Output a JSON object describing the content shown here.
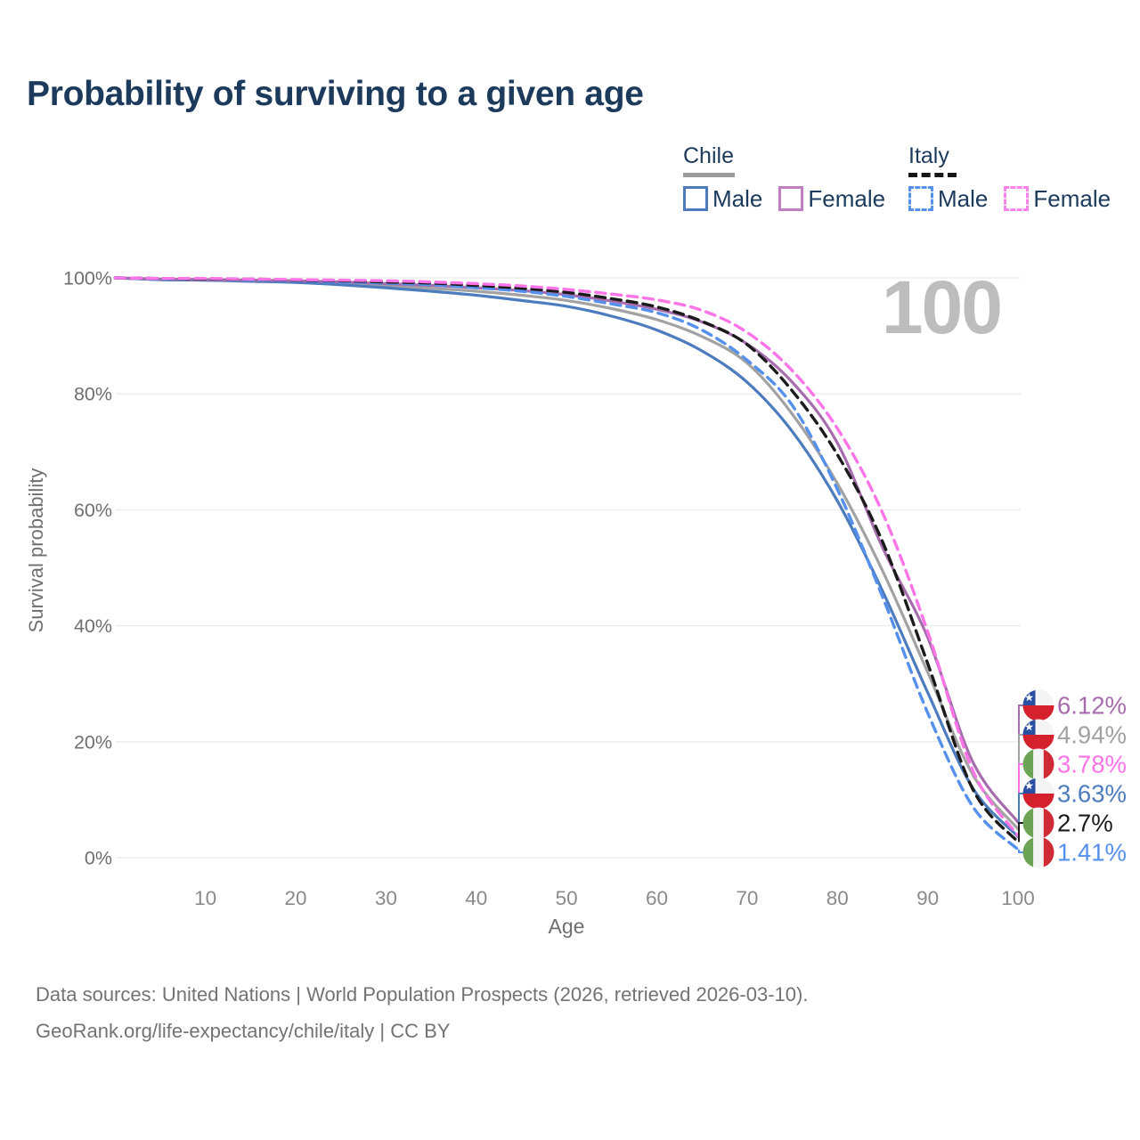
{
  "title": "Probability of surviving to a given age",
  "watermark": "100",
  "legend": {
    "groups": [
      {
        "country": "Chile",
        "line_style": "solid",
        "underline_color": "#9b9b9b",
        "items": [
          {
            "label": "Male",
            "color": "#4c7cbe"
          },
          {
            "label": "Female",
            "color": "#c07fc0"
          }
        ]
      },
      {
        "country": "Italy",
        "line_style": "dashed",
        "underline_color": "#161616",
        "items": [
          {
            "label": "Male",
            "color": "#5590ec"
          },
          {
            "label": "Female",
            "color": "#ff82ea"
          }
        ]
      }
    ]
  },
  "chart_data": {
    "type": "line",
    "title": "Probability of surviving to a given age",
    "xlabel": "Age",
    "ylabel": "Survival probability",
    "xlim": [
      0,
      100
    ],
    "ylim": [
      0,
      100
    ],
    "grid": true,
    "legend_position": "top-right",
    "x_ticks": [
      10,
      20,
      30,
      40,
      50,
      60,
      70,
      80,
      90,
      100
    ],
    "y_ticks": [
      0,
      20,
      40,
      60,
      80,
      100
    ],
    "y_tick_suffix": "%",
    "x": [
      0,
      5,
      10,
      15,
      20,
      25,
      30,
      35,
      40,
      45,
      50,
      55,
      60,
      65,
      70,
      75,
      80,
      85,
      90,
      95,
      100
    ],
    "series": [
      {
        "key": "chile_male",
        "name": "Chile Male",
        "country": "chile",
        "sex": "male",
        "color": "#4c7cbe",
        "dash": false,
        "values": [
          100,
          99.7,
          99.6,
          99.4,
          99.2,
          98.8,
          98.3,
          97.7,
          97.0,
          96.1,
          95.1,
          93.4,
          91.0,
          87.4,
          82.0,
          73.5,
          61.5,
          46.0,
          28.5,
          12.0,
          3.63
        ],
        "end_label": "3.63%"
      },
      {
        "key": "chile_female",
        "name": "Chile Female",
        "country": "chile",
        "sex": "female",
        "color": "#a76cae",
        "dash": false,
        "values": [
          100,
          99.8,
          99.7,
          99.6,
          99.5,
          99.3,
          99.0,
          98.7,
          98.3,
          97.8,
          97.1,
          96.0,
          94.6,
          92.4,
          88.6,
          82.0,
          71.5,
          53.5,
          38.0,
          16.5,
          6.12
        ],
        "end_label": "6.12%"
      },
      {
        "key": "chile_overall",
        "name": "Chile",
        "country": "chile",
        "sex": "both",
        "color": "#a2a2a2",
        "dash": false,
        "values": [
          100,
          99.7,
          99.6,
          99.5,
          99.3,
          99.1,
          98.7,
          98.2,
          97.7,
          97.0,
          96.1,
          94.7,
          92.8,
          89.9,
          85.3,
          76.5,
          64.5,
          49.5,
          32.0,
          14.3,
          4.94
        ],
        "end_label": "4.94%"
      },
      {
        "key": "italy_male",
        "name": "Italy Male",
        "country": "italy",
        "sex": "male",
        "color": "#5590ec",
        "dash": true,
        "values": [
          100,
          99.8,
          99.8,
          99.7,
          99.5,
          99.3,
          99.1,
          98.8,
          98.3,
          97.7,
          96.8,
          95.5,
          94.0,
          91.0,
          85.8,
          78.0,
          63.5,
          45.0,
          25.0,
          8.8,
          1.41
        ],
        "end_label": "1.41%"
      },
      {
        "key": "italy_female",
        "name": "Italy Female",
        "country": "italy",
        "sex": "female",
        "color": "#fc74e8",
        "dash": true,
        "values": [
          100,
          99.9,
          99.9,
          99.8,
          99.7,
          99.6,
          99.5,
          99.3,
          99.0,
          98.6,
          98.0,
          97.2,
          96.2,
          94.4,
          90.6,
          84.0,
          74.0,
          59.5,
          39.0,
          15.0,
          3.78
        ],
        "end_label": "3.78%"
      },
      {
        "key": "italy_overall",
        "name": "Italy",
        "country": "italy",
        "sex": "both",
        "color": "#1b1b1b",
        "dash": true,
        "values": [
          100,
          99.9,
          99.8,
          99.8,
          99.6,
          99.5,
          99.3,
          99.1,
          98.7,
          98.2,
          97.5,
          96.4,
          95.0,
          92.5,
          88.5,
          80.5,
          69.5,
          54.5,
          33.5,
          11.8,
          2.7
        ],
        "end_label": "2.7%"
      }
    ],
    "end_labels": [
      {
        "series": "chile_female",
        "label": "6.12%",
        "flag": "chile"
      },
      {
        "series": "chile_overall",
        "label": "4.94%",
        "flag": "chile"
      },
      {
        "series": "italy_female",
        "label": "3.78%",
        "flag": "italy"
      },
      {
        "series": "chile_male",
        "label": "3.63%",
        "flag": "chile"
      },
      {
        "series": "italy_overall",
        "label": "2.7%",
        "flag": "italy"
      },
      {
        "series": "italy_male",
        "label": "1.41%",
        "flag": "italy"
      }
    ],
    "style": {
      "gridline_color": "#ebebeb",
      "y_tick_color": "#6f6f6f",
      "x_tick_color": "#8a8a8a",
      "axis_title_color": "#6f6f6f",
      "watermark_color": "#bdbdbd",
      "flag_chile_blue": "#2a4fa2",
      "flag_chile_red": "#d5202e",
      "flag_italy_green": "#6ca355",
      "flag_italy_red": "#cf2b36"
    }
  },
  "footer": {
    "line1": "Data sources: United Nations | World Population Prospects (2026, retrieved 2026-03-10).",
    "line2": "GeoRank.org/life-expectancy/chile/italy | CC BY"
  }
}
